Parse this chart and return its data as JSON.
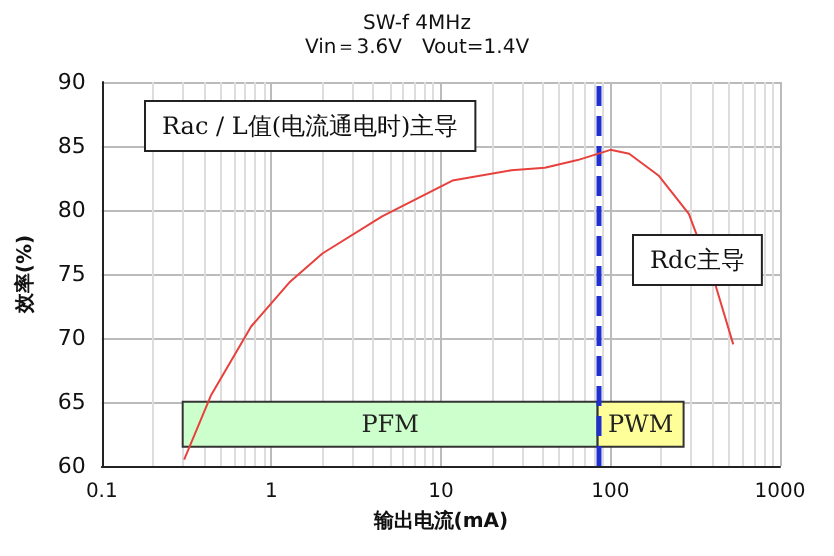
{
  "chart_data": {
    "type": "line",
    "title": "SW-f 4MHz",
    "subtitle": "Vin＝3.6V　Vout=1.4V",
    "xlabel": "输出电流(mA)",
    "ylabel": "效率(%)",
    "x": [
      0.306,
      0.44,
      0.76,
      1.29,
      2.0,
      4.5,
      11.7,
      26,
      41,
      64,
      100,
      129,
      192,
      290,
      415,
      530
    ],
    "series": [
      {
        "color": "#e8403c",
        "values": [
          60.5,
          65.5,
          70.9,
          74.4,
          76.6,
          79.5,
          82.3,
          83.1,
          83.3,
          83.9,
          84.7,
          84.4,
          82.7,
          79.7,
          74.2,
          69.5
        ]
      }
    ],
    "log": "x",
    "xlim": [
      0.1,
      1000
    ],
    "xticks": [
      0.1,
      1,
      10,
      100,
      1000
    ],
    "ylim": [
      60,
      90
    ],
    "yticks": [
      60,
      65,
      70,
      75,
      80,
      85,
      90
    ],
    "grid": true,
    "marker": "none",
    "line_style": "solid",
    "ref_lines": [
      {
        "axis": "x",
        "value": 84,
        "color": "#2030d0",
        "line_style": "dashed"
      }
    ],
    "bands": [
      {
        "axis": "x",
        "from": 0.3,
        "to": 84,
        "label": "PFM",
        "color": "#ccffcc"
      },
      {
        "axis": "x",
        "from": 84,
        "to": 270,
        "label": "PWM",
        "color": "#ffff99"
      }
    ],
    "annotations": [
      "Rac / L值(电流通电时)主导",
      "Rdc主导"
    ]
  }
}
